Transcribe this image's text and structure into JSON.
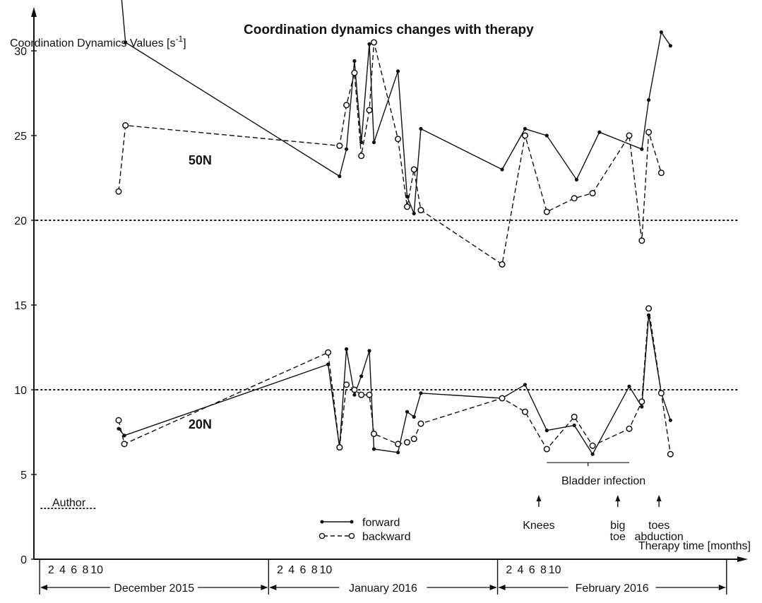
{
  "chart_data": {
    "type": "line",
    "title": "Coordination dynamics changes with therapy",
    "ylabel": "Coordination Dynamics Values [s",
    "ylabel_sup": "-1",
    "ylabel_close": "]",
    "xlabel": "Therapy time [months]",
    "ylim": [
      0,
      33
    ],
    "yticks": [
      0,
      5,
      10,
      15,
      20,
      25,
      30
    ],
    "xlim": [
      -1.5,
      60
    ],
    "month_labels": [
      {
        "text": "December 2015",
        "start": -1,
        "end": 19
      },
      {
        "text": "January 2016",
        "start": 19,
        "end": 39
      },
      {
        "text": "February 2016",
        "start": 39,
        "end": 59
      }
    ],
    "day_ticks": [
      {
        "month": 0,
        "days": [
          "2",
          "4",
          "6",
          "8",
          "10"
        ]
      },
      {
        "month": 1,
        "days": [
          "2",
          "4",
          "6",
          "8",
          "10"
        ]
      },
      {
        "month": 2,
        "days": [
          "2",
          "4",
          "6",
          "8",
          "10"
        ]
      }
    ],
    "reference_lines": [
      {
        "y": 20,
        "style": "dotted"
      },
      {
        "y": 10,
        "style": "dotted"
      }
    ],
    "group_labels": [
      {
        "text": "50N",
        "x": 12,
        "y": 23.3
      },
      {
        "text": "20N",
        "x": 12,
        "y": 7.7
      }
    ],
    "author_line": {
      "text": "Author",
      "y": 3
    },
    "legend": {
      "position": "bottom-center",
      "entries": [
        "forward",
        "backward"
      ]
    },
    "annotations": {
      "bladder": {
        "text": "Bladder infection",
        "from": 43.3,
        "to": 50.5,
        "y": 5.7
      },
      "arrows": [
        {
          "lines": [
            "Knees"
          ],
          "x": 42.6
        },
        {
          "lines": [
            "big",
            "toe"
          ],
          "x": 49.5
        },
        {
          "lines": [
            "toes",
            "abduction"
          ],
          "x": 53.1
        }
      ]
    },
    "series": [
      {
        "name": "forward",
        "group": "50N",
        "style": "solid",
        "points": [
          [
            6,
            34.3
          ],
          [
            6.5,
            30.5
          ],
          [
            25.2,
            22.6
          ],
          [
            25.8,
            24.2
          ],
          [
            26.5,
            29.4
          ],
          [
            27.1,
            24.6
          ],
          [
            27.8,
            30.4
          ],
          [
            28.2,
            24.6
          ],
          [
            30.3,
            28.8
          ],
          [
            31.1,
            21.4
          ],
          [
            31.7,
            20.4
          ],
          [
            32.3,
            25.4
          ],
          [
            39.4,
            23
          ],
          [
            41.4,
            25.4
          ],
          [
            43.3,
            25
          ],
          [
            45.9,
            22.4
          ],
          [
            47.9,
            25.2
          ],
          [
            51.6,
            24.2
          ],
          [
            52.2,
            27.1
          ],
          [
            53.3,
            31.1
          ],
          [
            54.1,
            30.3
          ]
        ]
      },
      {
        "name": "backward",
        "group": "50N",
        "style": "dashed",
        "points": [
          [
            5.9,
            21.7
          ],
          [
            6.5,
            25.6
          ],
          [
            25.2,
            24.4
          ],
          [
            25.8,
            26.8
          ],
          [
            26.5,
            28.7
          ],
          [
            27.1,
            23.8
          ],
          [
            27.8,
            26.5
          ],
          [
            28.2,
            30.5
          ],
          [
            30.3,
            24.8
          ],
          [
            31.1,
            20.8
          ],
          [
            31.7,
            23
          ],
          [
            32.3,
            20.6
          ],
          [
            39.4,
            17.4
          ],
          [
            41.4,
            25
          ],
          [
            43.3,
            20.5
          ],
          [
            45.7,
            21.3
          ],
          [
            47.3,
            21.6
          ],
          [
            50.5,
            25
          ],
          [
            51.6,
            18.8
          ],
          [
            52.2,
            25.2
          ],
          [
            53.3,
            22.8
          ]
        ]
      },
      {
        "name": "forward",
        "group": "20N",
        "style": "solid",
        "points": [
          [
            5.9,
            7.7
          ],
          [
            6.4,
            7.3
          ],
          [
            24.2,
            11.5
          ],
          [
            25.2,
            6.6
          ],
          [
            25.8,
            12.4
          ],
          [
            26.5,
            9.7
          ],
          [
            27.1,
            10.8
          ],
          [
            27.8,
            12.3
          ],
          [
            28.2,
            6.5
          ],
          [
            30.3,
            6.3
          ],
          [
            31.1,
            8.7
          ],
          [
            31.7,
            8.4
          ],
          [
            32.3,
            9.8
          ],
          [
            39.4,
            9.5
          ],
          [
            41.4,
            10.3
          ],
          [
            43.3,
            7.6
          ],
          [
            45.7,
            7.9
          ],
          [
            47.3,
            6.2
          ],
          [
            50.5,
            10.2
          ],
          [
            51.6,
            9
          ],
          [
            52.2,
            14.4
          ],
          [
            53.3,
            9.8
          ],
          [
            54.1,
            8.2
          ]
        ]
      },
      {
        "name": "backward",
        "group": "20N",
        "style": "dashed",
        "points": [
          [
            5.9,
            8.2
          ],
          [
            6.4,
            6.8
          ],
          [
            24.2,
            12.2
          ],
          [
            25.2,
            6.6
          ],
          [
            25.8,
            10.3
          ],
          [
            26.5,
            10
          ],
          [
            27.1,
            9.7
          ],
          [
            27.8,
            9.7
          ],
          [
            28.2,
            7.4
          ],
          [
            30.3,
            6.8
          ],
          [
            31.1,
            6.9
          ],
          [
            31.7,
            7.1
          ],
          [
            32.3,
            8
          ],
          [
            39.4,
            9.5
          ],
          [
            41.4,
            8.7
          ],
          [
            43.3,
            6.5
          ],
          [
            45.7,
            8.4
          ],
          [
            47.3,
            6.7
          ],
          [
            50.5,
            7.7
          ],
          [
            51.6,
            9.3
          ],
          [
            52.2,
            14.8
          ],
          [
            53.3,
            9.8
          ],
          [
            54.1,
            6.2
          ]
        ]
      }
    ]
  }
}
